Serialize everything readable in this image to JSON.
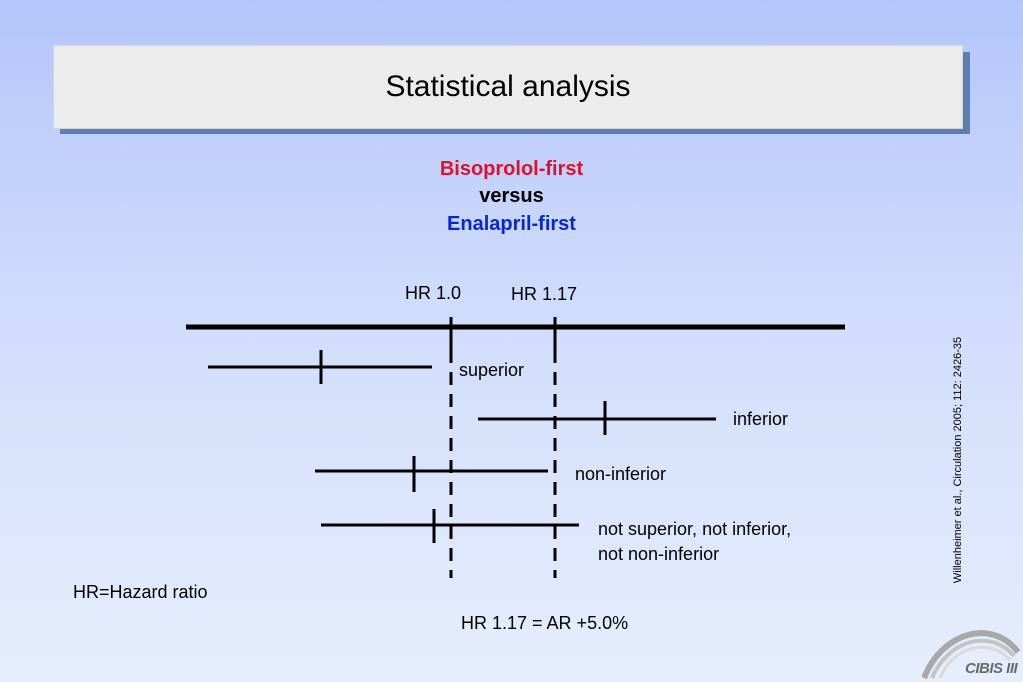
{
  "title": "Statistical analysis",
  "comparison": {
    "line1": "Bisoprolol-first",
    "line2": "versus",
    "line3": "Enalapril-first",
    "color1": "#e0102e",
    "color3": "#0a24d8"
  },
  "reference_labels": {
    "hr_1": "HR 1.0",
    "hr_117": "HR 1.17"
  },
  "interval_labels": {
    "superior": "superior",
    "inferior": "inferior",
    "non_inferior": "non-inferior",
    "neither_line1": "not superior, not inferior,",
    "neither_line2": "not non-inferior"
  },
  "footnote": "HR=Hazard ratio",
  "equation": "HR 1.17 = AR +5.0%",
  "citation": "Willenheimer et al., Circulation 2005; 112: 2426-35",
  "logo_text": "CIBIS III"
}
